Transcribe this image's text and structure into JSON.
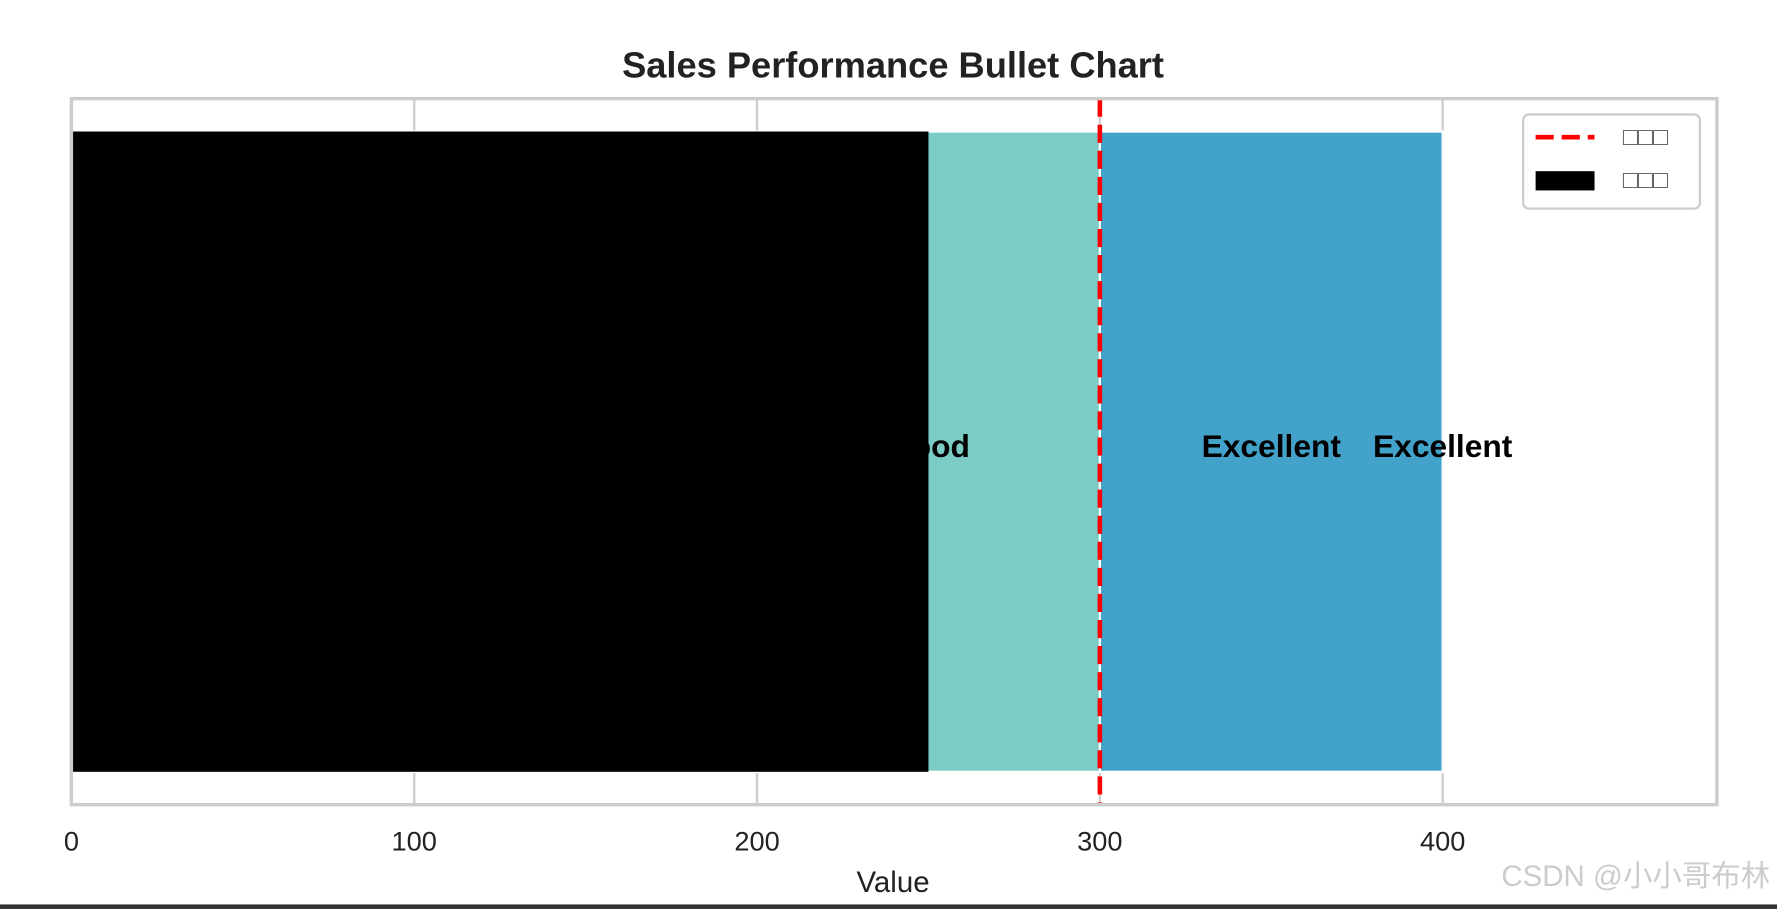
{
  "chart_data": {
    "type": "bullet",
    "title": "Sales Performance Bullet Chart",
    "x_label": "Value",
    "xlim": [
      0,
      480
    ],
    "xticks": [
      0,
      100,
      200,
      300,
      400
    ],
    "grid": true,
    "ranges": [
      {
        "end": 400,
        "color": "#43a2ca"
      },
      {
        "end": 300,
        "color": "#7bccc4"
      }
    ],
    "annotations": [
      {
        "text": "Good",
        "x": 250
      },
      {
        "text": "Excellent",
        "x": 350
      },
      {
        "text": "Excellent",
        "x": 400
      }
    ],
    "series": [
      {
        "name": "□□□",
        "color": "#000000",
        "values": [
          250
        ]
      }
    ],
    "target": {
      "name": "□□□",
      "color": "#ff0000",
      "value": 300
    },
    "legend": "upper right",
    "watermark": "CSDN @小小哥布林"
  }
}
